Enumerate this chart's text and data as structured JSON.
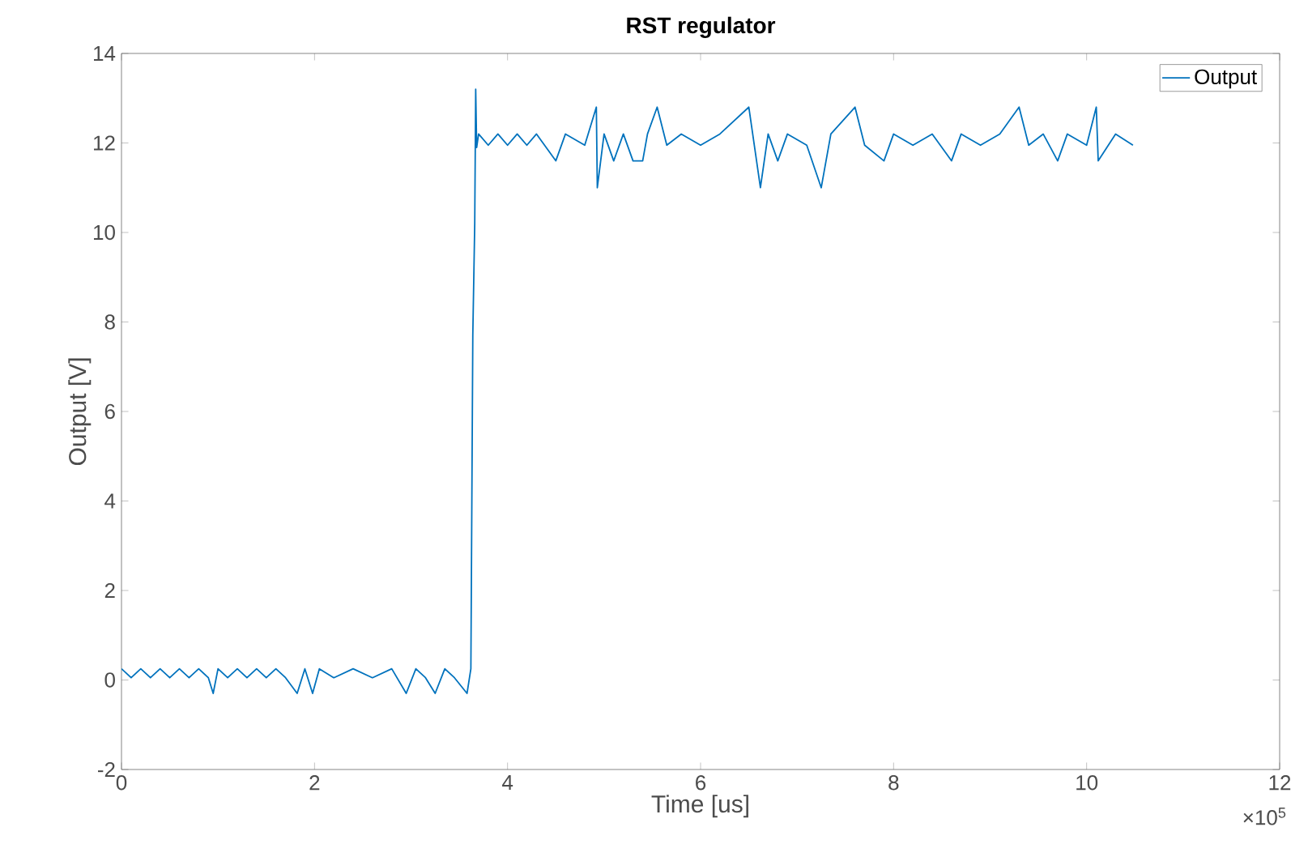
{
  "chart_data": {
    "type": "line",
    "title": "RST regulator",
    "xlabel": "Time [us]",
    "ylabel": "Output [V]",
    "annotations": [
      "×10$^{5}$"
    ],
    "xlim": [
      0,
      12
    ],
    "xticks": [
      0,
      2,
      4,
      6,
      8,
      10,
      12
    ],
    "ylim": [
      -2,
      14
    ],
    "yticks": [
      -2,
      0,
      2,
      4,
      6,
      8,
      10,
      12,
      14
    ],
    "grid": false,
    "legend": "top right",
    "marker": "none",
    "line_style": "solid",
    "series": [
      {
        "name": "Output",
        "color": "#0072bd",
        "x": [
          0,
          0.1,
          0.2,
          0.3,
          0.4,
          0.5,
          0.6,
          0.7,
          0.8,
          0.9,
          0.95,
          1.0,
          1.1,
          1.2,
          1.3,
          1.4,
          1.5,
          1.6,
          1.7,
          1.82,
          1.9,
          1.98,
          2.05,
          2.2,
          2.4,
          2.6,
          2.8,
          2.95,
          3.05,
          3.15,
          3.25,
          3.35,
          3.45,
          3.58,
          3.62,
          3.64,
          3.66,
          3.67,
          3.68,
          3.7,
          3.8,
          3.9,
          4.0,
          4.1,
          4.2,
          4.3,
          4.5,
          4.6,
          4.8,
          4.92,
          4.93,
          5.0,
          5.1,
          5.2,
          5.3,
          5.4,
          5.45,
          5.55,
          5.65,
          5.8,
          6.0,
          6.2,
          6.5,
          6.62,
          6.7,
          6.8,
          6.9,
          7.1,
          7.25,
          7.35,
          7.6,
          7.7,
          7.9,
          8.0,
          8.2,
          8.4,
          8.6,
          8.7,
          8.9,
          9.1,
          9.3,
          9.4,
          9.55,
          9.7,
          9.8,
          10.0,
          10.1,
          10.12,
          10.3,
          10.48
        ],
        "values": [
          0.25,
          0.05,
          0.25,
          0.05,
          0.25,
          0.05,
          0.25,
          0.05,
          0.25,
          0.05,
          -0.3,
          0.25,
          0.05,
          0.25,
          0.05,
          0.25,
          0.05,
          0.25,
          0.05,
          -0.3,
          0.25,
          -0.3,
          0.25,
          0.05,
          0.25,
          0.05,
          0.25,
          -0.3,
          0.25,
          0.05,
          -0.3,
          0.25,
          0.05,
          -0.3,
          0.25,
          7.7,
          10.2,
          13.2,
          11.9,
          12.2,
          11.95,
          12.2,
          11.95,
          12.2,
          11.95,
          12.2,
          11.6,
          12.2,
          11.95,
          12.8,
          11.0,
          12.2,
          11.6,
          12.2,
          11.6,
          11.6,
          12.2,
          12.8,
          11.95,
          12.2,
          11.95,
          12.2,
          12.8,
          11.0,
          12.2,
          11.6,
          12.2,
          11.95,
          11.0,
          12.2,
          12.8,
          11.95,
          11.6,
          12.2,
          11.95,
          12.2,
          11.6,
          12.2,
          11.95,
          12.2,
          12.8,
          11.95,
          12.2,
          11.6,
          12.2,
          11.95,
          12.8,
          11.6,
          12.2,
          11.95
        ]
      }
    ]
  }
}
